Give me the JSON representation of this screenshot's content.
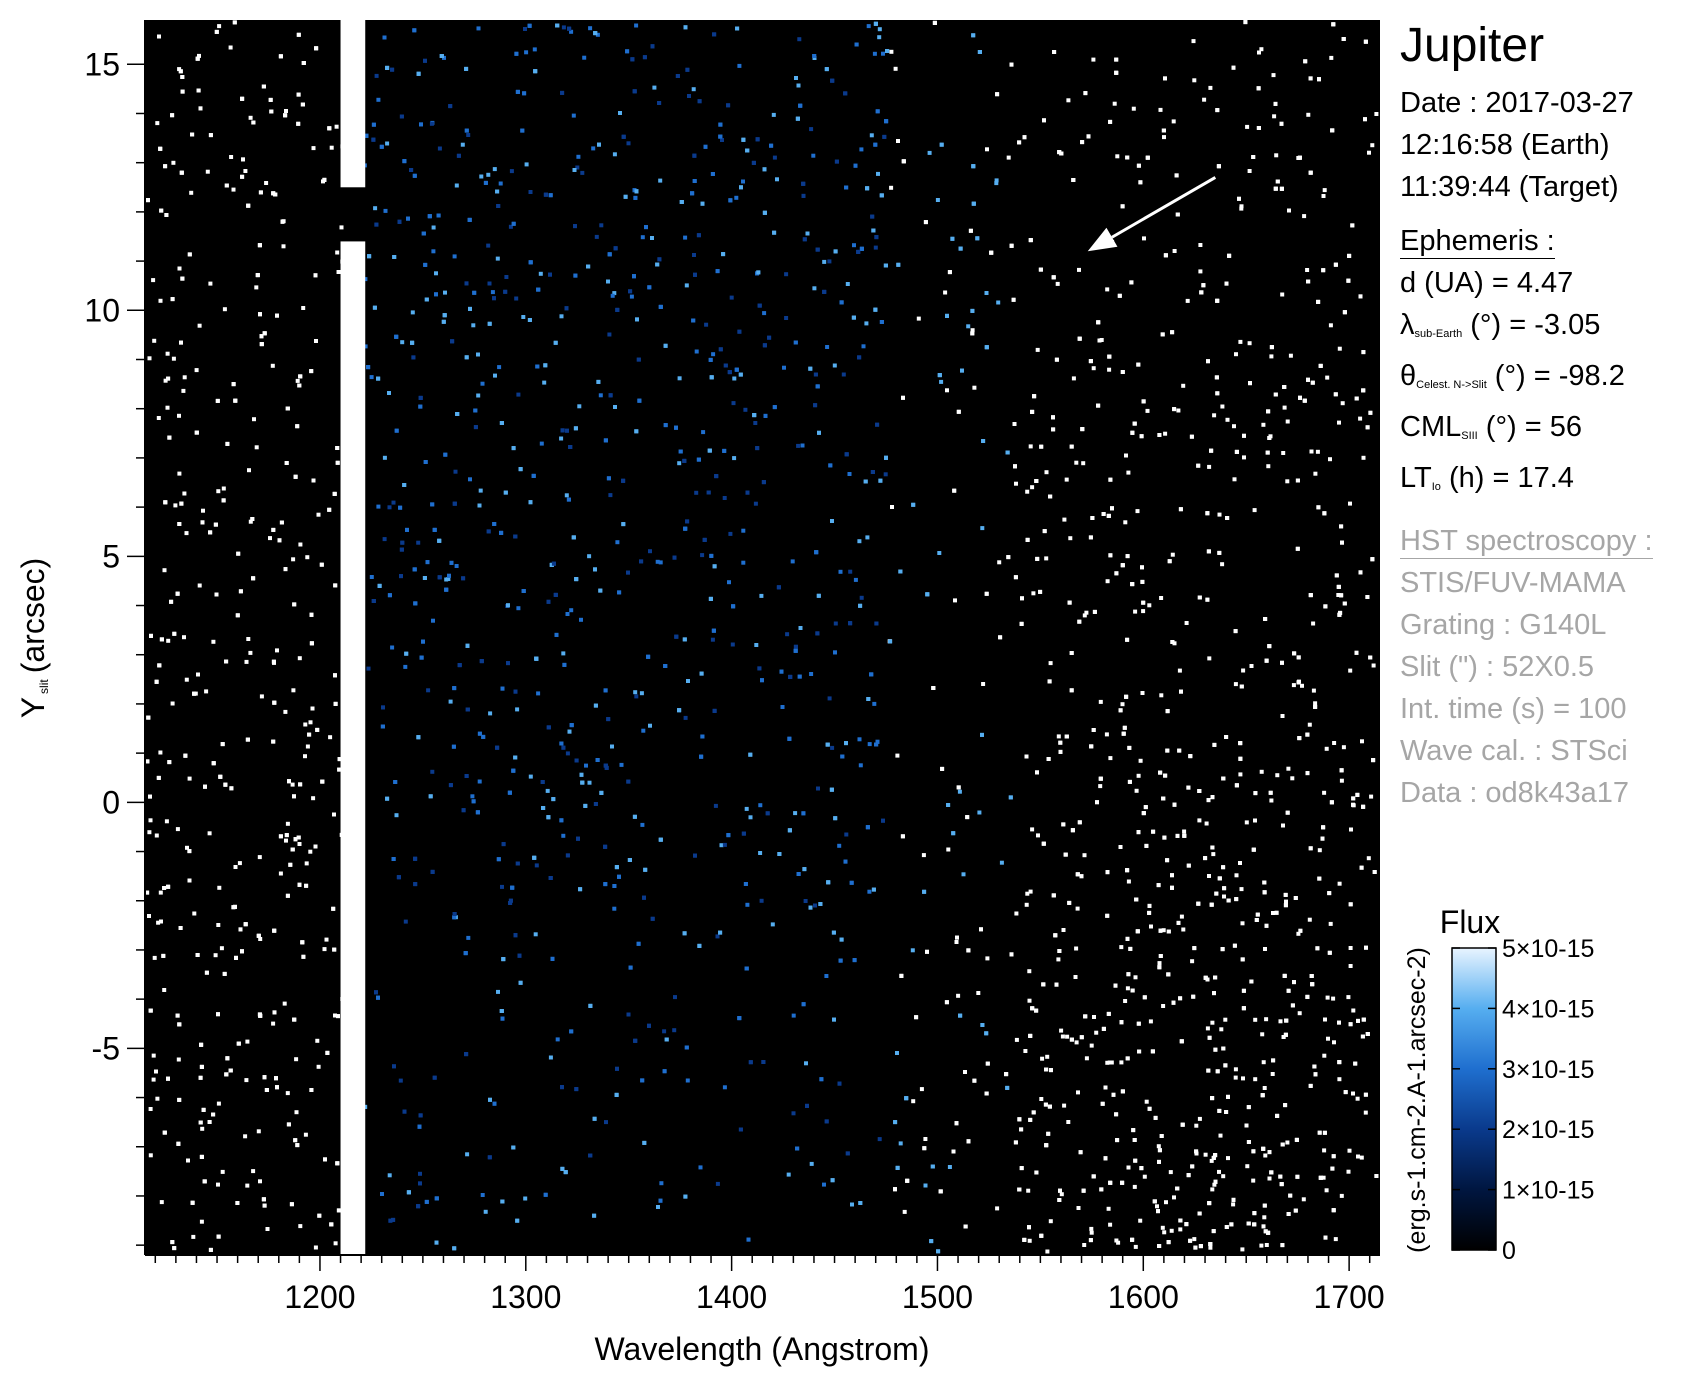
{
  "chart_data": {
    "type": "heatmap",
    "title": "",
    "xlabel": "Wavelength (Angstrom)",
    "ylabel_main": "Y",
    "ylabel_sub": "slit",
    "ylabel_unit": "(arcsec)",
    "xlim": [
      1115,
      1715
    ],
    "ylim": [
      -9.2,
      15.9
    ],
    "x_ticks": [
      1200,
      1300,
      1400,
      1500,
      1600,
      1700
    ],
    "x_tick_labels": [
      "1200",
      "1300",
      "1400",
      "1500",
      "1600",
      "1700"
    ],
    "y_ticks": [
      -5,
      0,
      5,
      10,
      15
    ],
    "y_tick_labels": [
      "-5",
      "0",
      "5",
      "10",
      "15"
    ],
    "background": "#000000",
    "bright_band": {
      "x_range": [
        1210,
        1222
      ],
      "gap_y": [
        11.4,
        12.5
      ]
    },
    "arrow": {
      "from": [
        1635,
        12.7
      ],
      "to": [
        1573,
        11.2
      ],
      "color": "#ffffff"
    },
    "colorbar": {
      "title": "Flux",
      "label": "(erg.s-1.cm-2.A-1.arcsec-2)",
      "range": [
        0,
        5e-15
      ],
      "tick_values": [
        0,
        1e-15,
        2e-15,
        3e-15,
        4e-15,
        5e-15
      ],
      "tick_labels": [
        "0",
        "1×10-15",
        "2×10-15",
        "3×10-15",
        "4×10-15",
        "5×10-15"
      ],
      "colors": [
        "#000000",
        "#001640",
        "#0a3a8c",
        "#1f6fcf",
        "#56aef0",
        "#e8f4ff"
      ]
    }
  },
  "info": {
    "target": "Jupiter",
    "date_line": "Date : 2017-03-27",
    "time_earth": "12:16:58 (Earth)",
    "time_target": "11:39:44 (Target)",
    "ephemeris_title": "Ephemeris :",
    "eph_d": "d (UA)     = 4.47",
    "eph_lambda_sym": "λ",
    "eph_lambda_sub": "sub-Earth",
    "eph_lambda_rest": " (°)  = -3.05",
    "eph_theta_sym": "θ",
    "eph_theta_sub": "Celest. N->Slit",
    "eph_theta_rest": " (°) = -98.2",
    "eph_cml_sym": "CML",
    "eph_cml_sub": "SIII",
    "eph_cml_rest": " (°) = 56",
    "eph_lt_sym": "LT",
    "eph_lt_sub": "Io",
    "eph_lt_rest": " (h) = 17.4",
    "hst_title": "HST spectroscopy :",
    "hst_instr": "STIS/FUV-MAMA",
    "hst_grating": "Grating : G140L",
    "hst_slit": "Slit (\") : 52X0.5",
    "hst_int": "Int. time (s) = 100",
    "hst_wave": "Wave cal. : STSci",
    "hst_data": "Data : od8k43a17"
  }
}
